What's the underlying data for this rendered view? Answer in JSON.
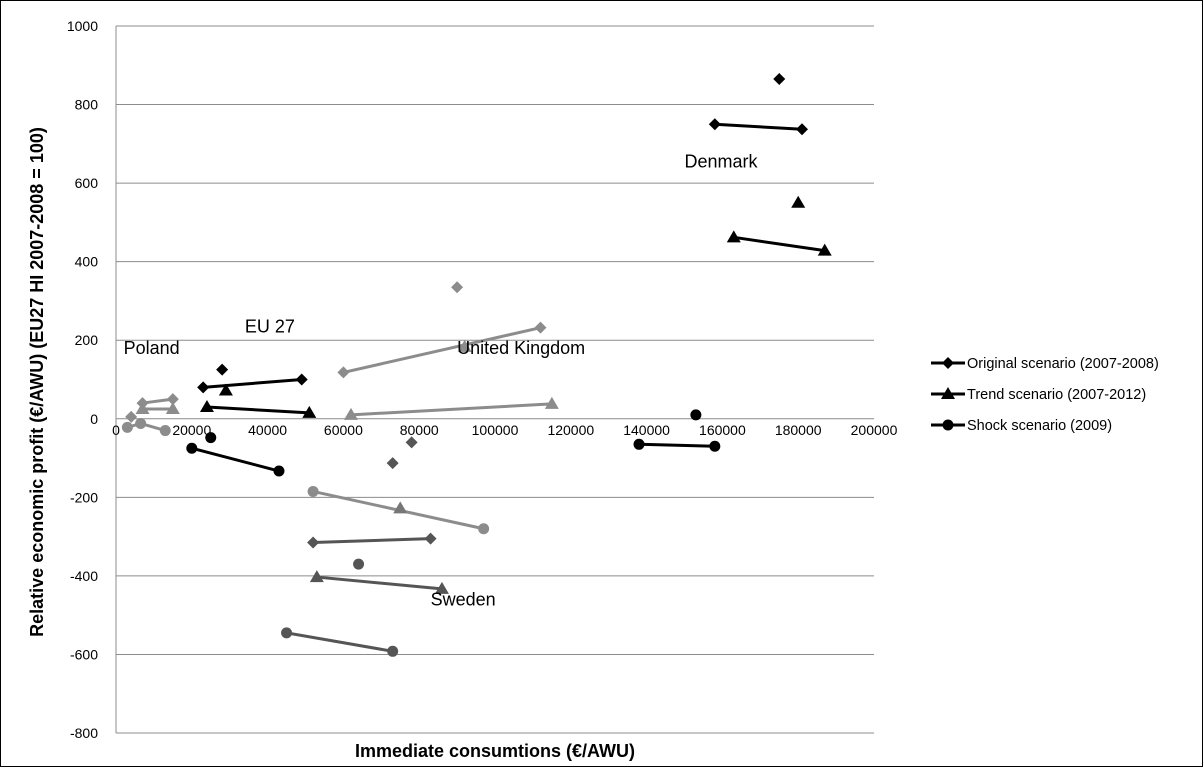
{
  "chart_data": {
    "type": "scatter",
    "xlabel": "Immediate consumtions (€/AWU)",
    "ylabel": "Relative economic profit (€/AWU) (EU27 HI 2007-2008 = 100)",
    "xlim": [
      0,
      200000
    ],
    "ylim": [
      -800,
      1000
    ],
    "x_ticks": [
      "0",
      "20000",
      "40000",
      "60000",
      "80000",
      "100000",
      "120000",
      "140000",
      "160000",
      "180000",
      "200000"
    ],
    "y_ticks": [
      "1000",
      "800",
      "600",
      "400",
      "200",
      "0",
      "-200",
      "-400",
      "-600",
      "-800"
    ],
    "grid": "horizontal",
    "legend_position": "right",
    "legend": [
      {
        "label": "Original scenario (2007-2008)",
        "marker": "diamond"
      },
      {
        "label": "Trend scenario (2007-2012)",
        "marker": "triangle"
      },
      {
        "label": "Shock scenario (2009)",
        "marker": "circle"
      }
    ],
    "annotations": [
      {
        "text": "Denmark",
        "x": 150000,
        "y": 640
      },
      {
        "text": "EU 27",
        "x": 34000,
        "y": 220
      },
      {
        "text": "Poland",
        "x": 2000,
        "y": 165
      },
      {
        "text": "United Kingdom",
        "x": 90000,
        "y": 165
      },
      {
        "text": "Sweden",
        "x": 83000,
        "y": -475
      }
    ],
    "series": [
      {
        "scenario": "Original scenario (2007-2008)",
        "group": "Denmark",
        "color": "#000000",
        "marker": "diamond",
        "points": [
          [
            175000,
            865
          ]
        ]
      },
      {
        "scenario": "Original scenario (2007-2008)",
        "group": "Denmark",
        "color": "#000000",
        "marker": "diamond",
        "points": [
          [
            158000,
            750
          ],
          [
            181000,
            737
          ]
        ]
      },
      {
        "scenario": "Trend scenario (2007-2012)",
        "group": "Denmark",
        "color": "#000000",
        "marker": "triangle",
        "points": [
          [
            180000,
            550
          ]
        ]
      },
      {
        "scenario": "Trend scenario (2007-2012)",
        "group": "Denmark",
        "color": "#000000",
        "marker": "triangle",
        "points": [
          [
            163000,
            462
          ],
          [
            187000,
            428
          ]
        ]
      },
      {
        "scenario": "Shock scenario (2009)",
        "group": "Denmark",
        "color": "#000000",
        "marker": "circle",
        "points": [
          [
            153000,
            10
          ]
        ]
      },
      {
        "scenario": "Shock scenario (2009)",
        "group": "Denmark",
        "color": "#000000",
        "marker": "circle",
        "points": [
          [
            138000,
            -65
          ],
          [
            158000,
            -70
          ]
        ]
      },
      {
        "scenario": "Original scenario (2007-2008)",
        "group": "EU 27",
        "color": "#000000",
        "marker": "diamond",
        "points": [
          [
            28000,
            125
          ]
        ]
      },
      {
        "scenario": "Original scenario (2007-2008)",
        "group": "EU 27",
        "color": "#000000",
        "marker": "diamond",
        "points": [
          [
            23000,
            80
          ],
          [
            49000,
            100
          ]
        ]
      },
      {
        "scenario": "Trend scenario (2007-2012)",
        "group": "EU 27",
        "color": "#000000",
        "marker": "triangle",
        "points": [
          [
            29000,
            72
          ]
        ]
      },
      {
        "scenario": "Trend scenario (2007-2012)",
        "group": "EU 27",
        "color": "#000000",
        "marker": "triangle",
        "points": [
          [
            24000,
            30
          ],
          [
            51000,
            15
          ]
        ]
      },
      {
        "scenario": "Shock scenario (2009)",
        "group": "EU 27",
        "color": "#000000",
        "marker": "circle",
        "points": [
          [
            25000,
            -48
          ]
        ]
      },
      {
        "scenario": "Shock scenario (2009)",
        "group": "EU 27",
        "color": "#000000",
        "marker": "circle",
        "points": [
          [
            20000,
            -75
          ],
          [
            43000,
            -133
          ]
        ]
      },
      {
        "scenario": "Original scenario (2007-2008)",
        "group": "Poland",
        "color": "#8c8c8c",
        "marker": "diamond",
        "points": [
          [
            7000,
            40
          ],
          [
            15000,
            50
          ]
        ]
      },
      {
        "scenario": "Original scenario (2007-2008)",
        "group": "Poland",
        "color": "#8c8c8c",
        "marker": "diamond",
        "points": [
          [
            4000,
            5
          ]
        ]
      },
      {
        "scenario": "Trend scenario (2007-2012)",
        "group": "Poland",
        "color": "#8c8c8c",
        "marker": "triangle",
        "points": [
          [
            7000,
            25
          ],
          [
            15000,
            25
          ]
        ]
      },
      {
        "scenario": "Shock scenario (2009)",
        "group": "Poland",
        "color": "#8c8c8c",
        "marker": "circle",
        "points": [
          [
            3000,
            -22
          ],
          [
            6500,
            -12
          ],
          [
            13000,
            -30
          ]
        ]
      },
      {
        "scenario": "Original scenario (2007-2008)",
        "group": "United Kingdom",
        "color": "#8c8c8c",
        "marker": "diamond",
        "points": [
          [
            90000,
            335
          ]
        ]
      },
      {
        "scenario": "Original scenario (2007-2008)",
        "group": "United Kingdom",
        "color": "#8c8c8c",
        "marker": "diamond",
        "points": [
          [
            60000,
            118
          ],
          [
            112000,
            232
          ]
        ]
      },
      {
        "scenario": "Trend scenario (2007-2012)",
        "group": "United Kingdom",
        "color": "#8c8c8c",
        "marker": "triangle",
        "points": [
          [
            92000,
            183
          ]
        ]
      },
      {
        "scenario": "Trend scenario (2007-2012)",
        "group": "United Kingdom",
        "color": "#8c8c8c",
        "marker": "triangle",
        "points": [
          [
            62000,
            10
          ],
          [
            115000,
            38
          ]
        ]
      },
      {
        "scenario": "Shock scenario (2009)",
        "group": "United Kingdom",
        "color": "#8c8c8c",
        "marker": "circle",
        "points": [
          [
            52000,
            -185
          ],
          [
            97000,
            -280
          ]
        ]
      },
      {
        "scenario": "Original scenario (2007-2008)",
        "group": "Sweden",
        "color": "#555555",
        "marker": "diamond",
        "points": [
          [
            78000,
            -60
          ]
        ]
      },
      {
        "scenario": "Original scenario (2007-2008)",
        "group": "Sweden",
        "color": "#555555",
        "marker": "diamond",
        "points": [
          [
            73000,
            -113
          ]
        ]
      },
      {
        "scenario": "Original scenario (2007-2008)",
        "group": "Sweden",
        "color": "#555555",
        "marker": "diamond",
        "points": [
          [
            52000,
            -315
          ],
          [
            83000,
            -305
          ]
        ]
      },
      {
        "scenario": "Trend scenario (2007-2012)",
        "group": "Sweden",
        "color": "#777777",
        "marker": "triangle",
        "points": [
          [
            75000,
            -228
          ]
        ]
      },
      {
        "scenario": "Trend scenario (2007-2012)",
        "group": "Sweden",
        "color": "#555555",
        "marker": "triangle",
        "points": [
          [
            53000,
            -403
          ],
          [
            86000,
            -433
          ]
        ]
      },
      {
        "scenario": "Shock scenario (2009)",
        "group": "Sweden",
        "color": "#555555",
        "marker": "circle",
        "points": [
          [
            64000,
            -370
          ]
        ]
      },
      {
        "scenario": "Shock scenario (2009)",
        "group": "Sweden",
        "color": "#555555",
        "marker": "circle",
        "points": [
          [
            45000,
            -545
          ],
          [
            73000,
            -592
          ]
        ]
      }
    ]
  }
}
